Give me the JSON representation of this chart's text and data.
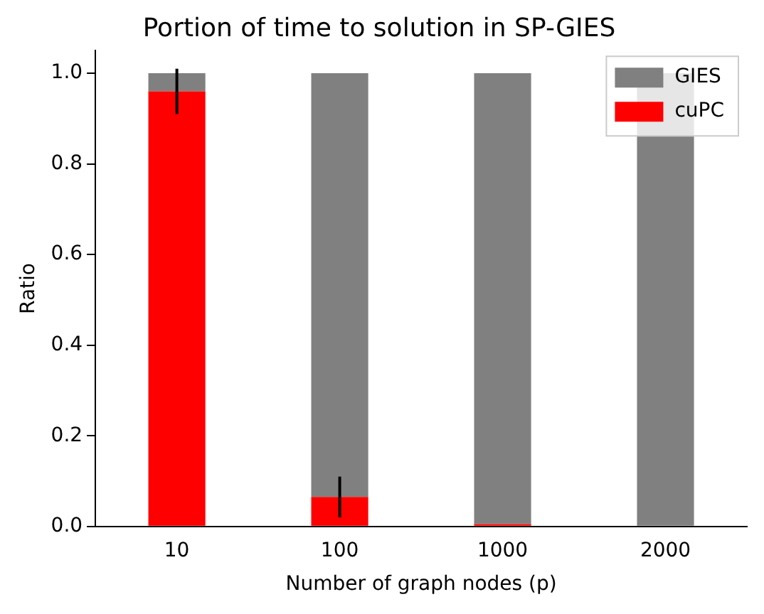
{
  "chart_data": {
    "type": "bar",
    "title": "Portion of time to solution in SP-GIES",
    "xlabel": "Number of graph nodes (p)",
    "ylabel": "Ratio",
    "categories": [
      "10",
      "100",
      "1000",
      "2000"
    ],
    "stacked": true,
    "series": [
      {
        "name": "cuPC",
        "color": "#ff0000",
        "values": [
          0.96,
          0.065,
          0.005,
          0
        ],
        "errors": [
          0.05,
          0.045,
          null,
          null
        ]
      },
      {
        "name": "GIES",
        "color": "#808080",
        "values": [
          0.04,
          0.935,
          0.995,
          1.0
        ]
      }
    ],
    "ylim": [
      0,
      1.05
    ],
    "yticks": [
      {
        "value": 0,
        "label": "0.0"
      },
      {
        "value": 0.2,
        "label": "0.2"
      },
      {
        "value": 0.4,
        "label": "0.4"
      },
      {
        "value": 0.6,
        "label": "0.6"
      },
      {
        "value": 0.8,
        "label": "0.8"
      },
      {
        "value": 1,
        "label": "1.0"
      }
    ],
    "grid": false,
    "legend": "top right"
  }
}
